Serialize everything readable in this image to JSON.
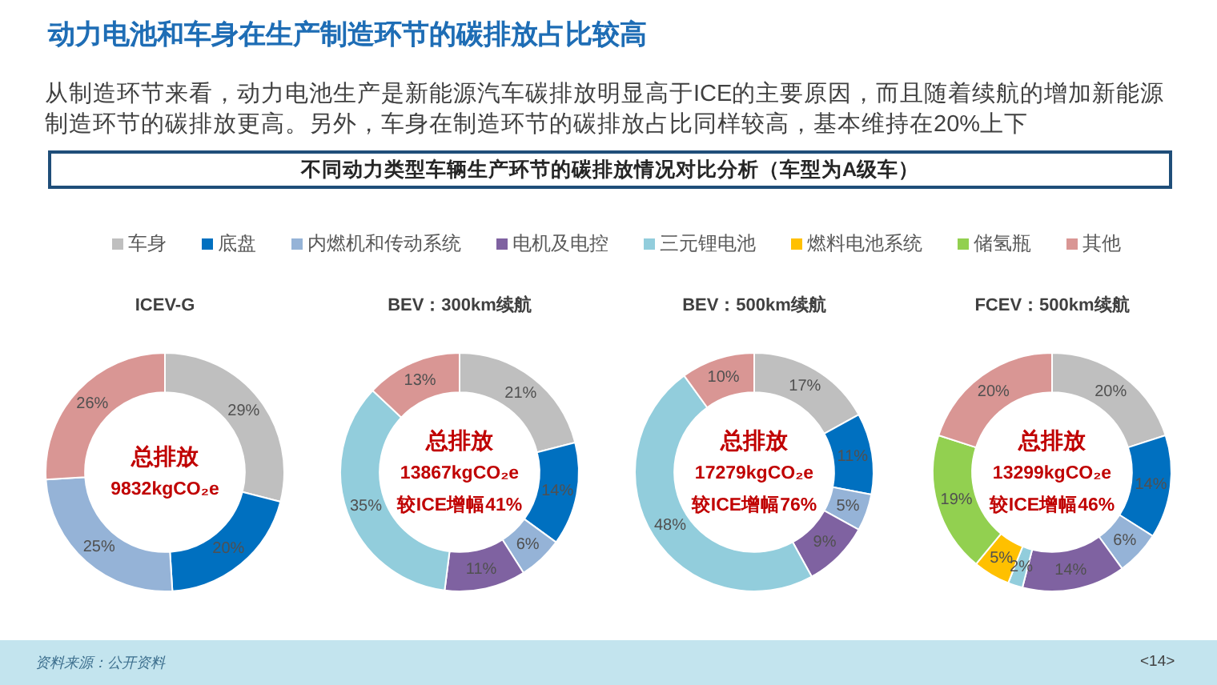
{
  "chart_data": [
    {
      "type": "other",
      "title": "动力电池和车身在生产制造环节的碳排放占比较高",
      "subtitle": "从制造环节来看，动力电池生产是新能源汽车碳排放明显高于ICE的主要原因，而且随着续航的增加新能源制造环节的碳排放更高。另外，车身在制造环节的碳排放占比同样较高，基本维持在20%上下",
      "annotations": [
        "不同动力类型车辆生产环节的碳排放情况对比分析（车型为A级车）",
        "资料来源：公开资料",
        "<14>"
      ]
    },
    {
      "type": "donut",
      "title": "ICEV-G",
      "categories": [
        null,
        null,
        null,
        null
      ],
      "values": [
        29,
        20,
        25,
        26
      ],
      "colors": [
        "#bfbfbf",
        "#0070c0",
        "#95b3d7",
        "#d99694"
      ],
      "value_labels": [
        "29%",
        "20%",
        "25%",
        "26%"
      ],
      "annotations": [
        "总排放",
        "9832kgCO₂e"
      ]
    },
    {
      "type": "donut",
      "title": "BEV：300km续航",
      "categories": [
        null,
        null,
        null,
        null,
        null,
        null
      ],
      "values": [
        21,
        14,
        6,
        11,
        35,
        13
      ],
      "colors": [
        "#bfbfbf",
        "#0070c0",
        "#95b3d7",
        "#7f62a1",
        "#92cddc",
        "#d99694"
      ],
      "value_labels": [
        "21%",
        "14%",
        "6%",
        "11%",
        "35%",
        "13%"
      ],
      "annotations": [
        "总排放",
        "13867kgCO₂e",
        "较ICE增幅41%"
      ]
    },
    {
      "type": "donut",
      "title": "BEV：500km续航",
      "categories": [
        null,
        null,
        null,
        null,
        null,
        null
      ],
      "values": [
        17,
        11,
        5,
        9,
        48,
        10
      ],
      "colors": [
        "#bfbfbf",
        "#0070c0",
        "#95b3d7",
        "#7f62a1",
        "#92cddc",
        "#d99694"
      ],
      "value_labels": [
        "17%",
        "11%",
        "5%",
        "9%",
        "48%",
        "10%"
      ],
      "annotations": [
        "总排放",
        "17279kgCO₂e",
        "较ICE增幅76%"
      ]
    },
    {
      "type": "donut",
      "title": "FCEV：500km续航",
      "categories": [
        "车身",
        "底盘",
        "内燃机和传动系统",
        "电机及电控",
        "三元锂电池",
        "燃料电池系统",
        "储氢瓶",
        "其他"
      ],
      "values": [
        20,
        14,
        6,
        14,
        2,
        5,
        19,
        20
      ],
      "colors": [
        "#bfbfbf",
        "#0070c0",
        "#95b3d7",
        "#7f62a1",
        "#92cddc",
        "#ffc000",
        "#92d050",
        "#d99694"
      ],
      "value_labels": [
        "20%",
        "14%",
        "6%",
        "14%",
        "2%",
        "5%",
        "19%",
        "20%"
      ],
      "annotations": [
        "总排放",
        "13299kgCO₂e",
        "较ICE增幅46%"
      ],
      "legend": "top"
    }
  ]
}
